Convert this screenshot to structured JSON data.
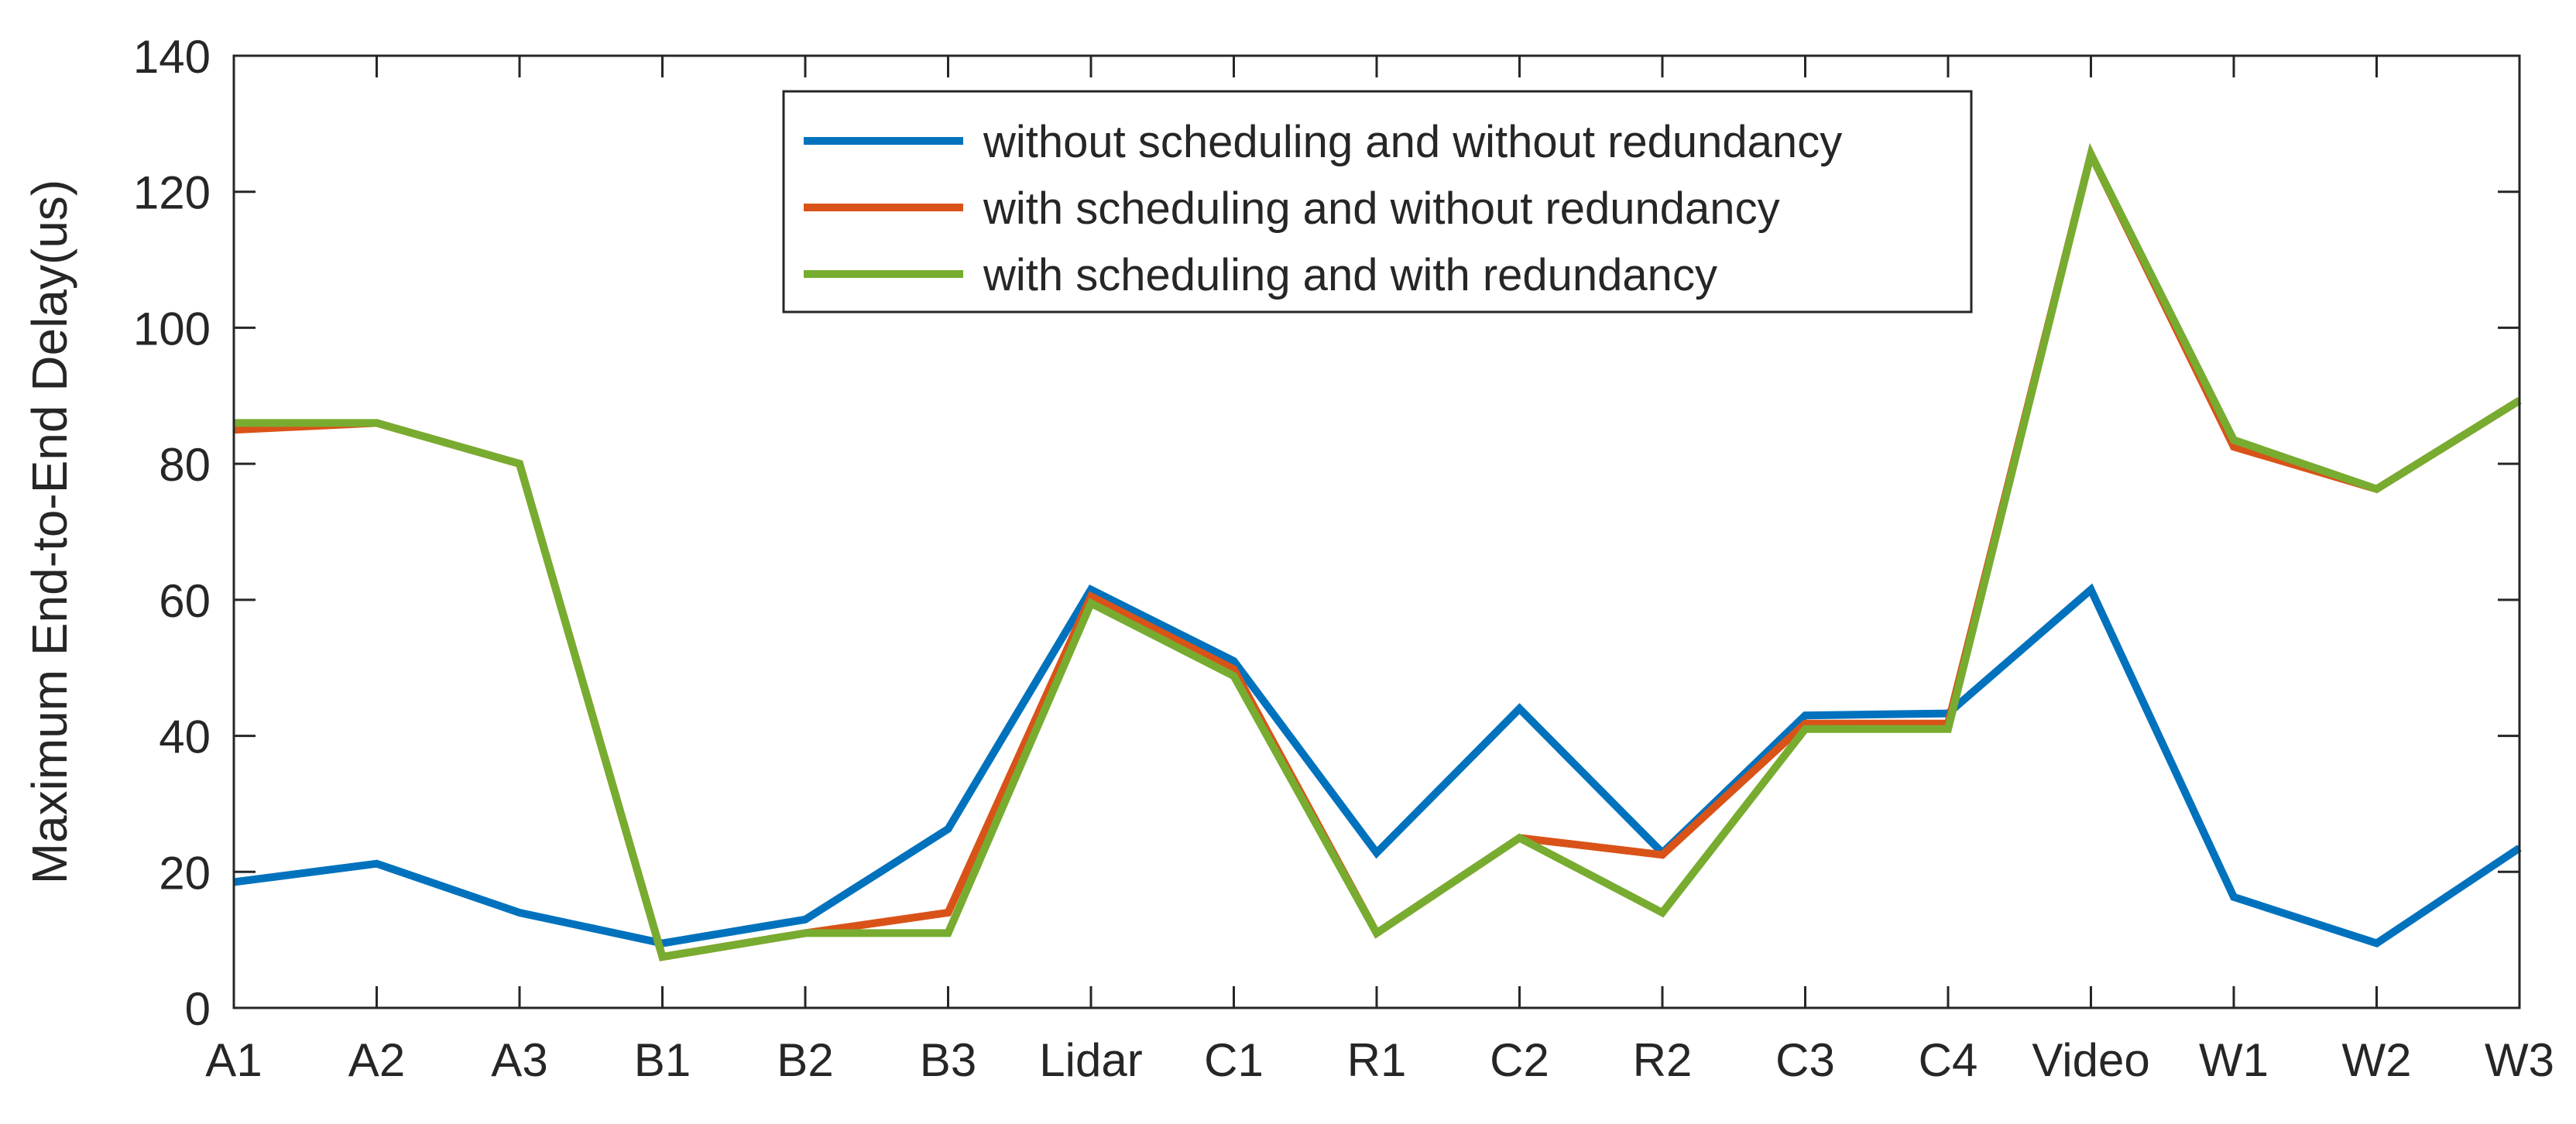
{
  "chart_data": {
    "type": "line",
    "title": "",
    "xlabel": "",
    "ylabel": "Maximum End-to-End Delay(us)",
    "categories": [
      "A1",
      "A2",
      "A3",
      "B1",
      "B2",
      "B3",
      "Lidar",
      "C1",
      "R1",
      "C2",
      "R2",
      "C3",
      "C4",
      "Video",
      "W1",
      "W2",
      "W3"
    ],
    "ylim": [
      0,
      140
    ],
    "yticks": [
      0,
      20,
      40,
      60,
      80,
      100,
      120,
      140
    ],
    "grid": false,
    "legend_position": "top-center",
    "series": [
      {
        "name": "without scheduling and without redundancy",
        "color": "#0072BD",
        "values": [
          18.5,
          21.2,
          14.0,
          9.5,
          13.0,
          26.3,
          61.5,
          51.0,
          22.8,
          44.0,
          22.8,
          43.0,
          43.3,
          61.5,
          16.3,
          9.5,
          23.5
        ]
      },
      {
        "name": "with scheduling and without redundancy",
        "color": "#D95319",
        "values": [
          85.0,
          86.0,
          80.0,
          7.5,
          11.0,
          14.0,
          60.5,
          49.8,
          11.0,
          25.0,
          22.5,
          41.8,
          41.8,
          125.5,
          82.5,
          76.3,
          89.3
        ]
      },
      {
        "name": "with scheduling and with redundancy",
        "color": "#77AC30",
        "values": [
          86.0,
          86.0,
          80.0,
          7.5,
          11.0,
          11.0,
          59.5,
          48.8,
          11.0,
          25.0,
          14.0,
          41.0,
          41.0,
          125.5,
          83.5,
          76.3,
          89.3
        ]
      }
    ]
  }
}
